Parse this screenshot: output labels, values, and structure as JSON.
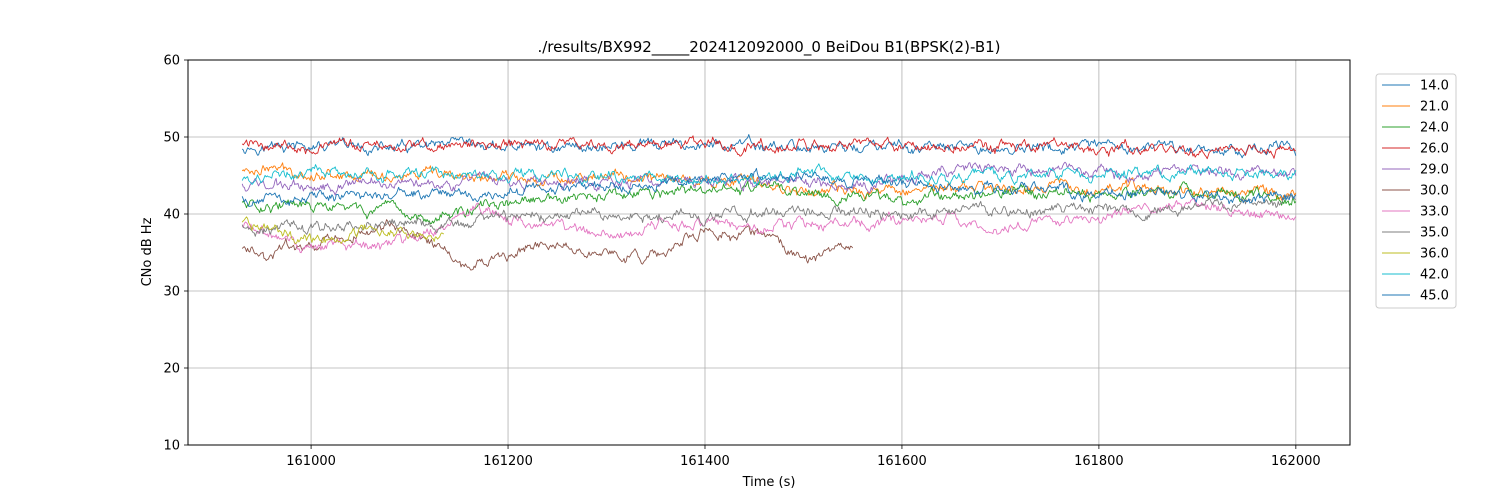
{
  "chart_data": {
    "type": "line",
    "title": "./results/BX992_____202412092000_0 BeiDou B1(BPSK(2)-B1)",
    "xlabel": "Time (s)",
    "ylabel": "CNo dB Hz",
    "xlim": [
      160875,
      162055
    ],
    "ylim": [
      10,
      60
    ],
    "xticks": [
      161000,
      161200,
      161400,
      161600,
      161800,
      162000
    ],
    "yticks": [
      10,
      20,
      30,
      40,
      50,
      60
    ],
    "grid": true,
    "legend_position": "outside-right-top",
    "series": [
      {
        "name": "14.0",
        "color": "#1f77b4",
        "points": [
          [
            160930,
            48.8
          ],
          [
            161000,
            48.6
          ],
          [
            161100,
            48.5
          ],
          [
            161200,
            48.7
          ],
          [
            161300,
            48.8
          ],
          [
            161400,
            48.9
          ],
          [
            161500,
            48.7
          ],
          [
            161600,
            48.6
          ],
          [
            161700,
            48.4
          ],
          [
            161800,
            48.5
          ],
          [
            161900,
            48.5
          ],
          [
            162000,
            48.5
          ]
        ]
      },
      {
        "name": "21.0",
        "color": "#ff7f0e",
        "points": [
          [
            160930,
            45.6
          ],
          [
            160950,
            46.0
          ],
          [
            161000,
            45.3
          ],
          [
            161100,
            44.9
          ],
          [
            161200,
            44.6
          ],
          [
            161300,
            44.9
          ],
          [
            161400,
            44.4
          ],
          [
            161450,
            44.0
          ],
          [
            161500,
            43.2
          ],
          [
            161550,
            42.7
          ],
          [
            161600,
            43.4
          ],
          [
            161700,
            43.3
          ],
          [
            161750,
            43.8
          ],
          [
            161800,
            43.6
          ],
          [
            161900,
            43.0
          ],
          [
            162000,
            42.8
          ]
        ]
      },
      {
        "name": "24.0",
        "color": "#2ca02c",
        "points": [
          [
            160930,
            41.5
          ],
          [
            161000,
            40.8
          ],
          [
            161050,
            40.6
          ],
          [
            161100,
            39.6
          ],
          [
            161150,
            40.2
          ],
          [
            161200,
            41.3
          ],
          [
            161300,
            42.2
          ],
          [
            161400,
            43.0
          ],
          [
            161450,
            43.4
          ],
          [
            161500,
            42.9
          ],
          [
            161550,
            42.2
          ],
          [
            161600,
            41.8
          ],
          [
            161650,
            42.6
          ],
          [
            161700,
            43.1
          ],
          [
            161800,
            42.7
          ],
          [
            161900,
            42.9
          ],
          [
            161950,
            42.4
          ],
          [
            162000,
            42.0
          ]
        ]
      },
      {
        "name": "26.0",
        "color": "#d62728",
        "points": [
          [
            160930,
            49.1
          ],
          [
            161000,
            48.9
          ],
          [
            161100,
            48.8
          ],
          [
            161200,
            49.0
          ],
          [
            161250,
            49.2
          ],
          [
            161300,
            48.8
          ],
          [
            161400,
            49.1
          ],
          [
            161500,
            48.5
          ],
          [
            161600,
            48.9
          ],
          [
            161700,
            48.7
          ],
          [
            161800,
            48.2
          ],
          [
            161900,
            48.3
          ],
          [
            162000,
            48.2
          ]
        ]
      },
      {
        "name": "29.0",
        "color": "#9467bd",
        "points": [
          [
            160930,
            43.9
          ],
          [
            161000,
            43.6
          ],
          [
            161050,
            44.1
          ],
          [
            161100,
            44.4
          ],
          [
            161200,
            44.0
          ],
          [
            161300,
            44.3
          ],
          [
            161400,
            44.2
          ],
          [
            161500,
            44.0
          ],
          [
            161550,
            43.4
          ],
          [
            161600,
            44.8
          ],
          [
            161650,
            45.6
          ],
          [
            161700,
            45.8
          ],
          [
            161800,
            45.4
          ],
          [
            161900,
            45.5
          ],
          [
            162000,
            45.2
          ]
        ]
      },
      {
        "name": "30.0",
        "color": "#8c564b",
        "points": [
          [
            160930,
            35.5
          ],
          [
            160955,
            34.2
          ],
          [
            160980,
            36.0
          ],
          [
            161000,
            35.8
          ],
          [
            161050,
            37.6
          ],
          [
            161080,
            38.1
          ],
          [
            161110,
            37.4
          ],
          [
            161140,
            34.6
          ],
          [
            161160,
            32.4
          ],
          [
            161180,
            33.8
          ],
          [
            161200,
            34.6
          ],
          [
            161230,
            36.2
          ],
          [
            161260,
            35.5
          ],
          [
            161290,
            35.0
          ],
          [
            161320,
            34.2
          ],
          [
            161350,
            34.6
          ],
          [
            161380,
            36.8
          ],
          [
            161400,
            37.8
          ],
          [
            161430,
            37.2
          ],
          [
            161460,
            37.6
          ],
          [
            161480,
            35.4
          ],
          [
            161510,
            34.2
          ],
          [
            161530,
            35.0
          ],
          [
            161550,
            35.6
          ]
        ]
      },
      {
        "name": "33.0",
        "color": "#e377c2",
        "points": [
          [
            160930,
            38.4
          ],
          [
            160980,
            36.2
          ],
          [
            161000,
            36.0
          ],
          [
            161050,
            35.6
          ],
          [
            161100,
            36.4
          ],
          [
            161150,
            39.8
          ],
          [
            161180,
            40.3
          ],
          [
            161220,
            38.8
          ],
          [
            161260,
            37.8
          ],
          [
            161300,
            37.0
          ],
          [
            161330,
            37.6
          ],
          [
            161360,
            38.6
          ],
          [
            161400,
            39.0
          ],
          [
            161450,
            38.0
          ],
          [
            161500,
            38.5
          ],
          [
            161550,
            38.6
          ],
          [
            161600,
            39.2
          ],
          [
            161650,
            39.5
          ],
          [
            161700,
            37.8
          ],
          [
            161750,
            39.0
          ],
          [
            161800,
            40.0
          ],
          [
            161850,
            40.6
          ],
          [
            161900,
            41.4
          ],
          [
            161950,
            40.2
          ],
          [
            162000,
            39.5
          ]
        ]
      },
      {
        "name": "35.0",
        "color": "#7f7f7f",
        "points": [
          [
            160930,
            38.6
          ],
          [
            161000,
            38.4
          ],
          [
            161100,
            38.9
          ],
          [
            161150,
            38.4
          ],
          [
            161200,
            39.6
          ],
          [
            161300,
            40.2
          ],
          [
            161400,
            39.7
          ],
          [
            161500,
            40.4
          ],
          [
            161600,
            40.0
          ],
          [
            161700,
            40.5
          ],
          [
            161800,
            40.6
          ],
          [
            161850,
            39.8
          ],
          [
            161900,
            41.0
          ],
          [
            162000,
            41.6
          ]
        ]
      },
      {
        "name": "36.0",
        "color": "#bcbd22",
        "points": [
          [
            160930,
            38.9
          ],
          [
            160960,
            37.8
          ],
          [
            160990,
            36.6
          ],
          [
            161020,
            36.8
          ],
          [
            161050,
            37.6
          ],
          [
            161080,
            38.4
          ],
          [
            161110,
            37.0
          ],
          [
            161135,
            37.6
          ]
        ]
      },
      {
        "name": "42.0",
        "color": "#17becf",
        "points": [
          [
            160930,
            44.3
          ],
          [
            161000,
            45.2
          ],
          [
            161100,
            45.0
          ],
          [
            161200,
            45.3
          ],
          [
            161300,
            44.7
          ],
          [
            161400,
            44.3
          ],
          [
            161500,
            44.9
          ],
          [
            161600,
            44.8
          ],
          [
            161700,
            44.8
          ],
          [
            161800,
            45.1
          ],
          [
            161900,
            45.1
          ],
          [
            162000,
            45.0
          ]
        ]
      },
      {
        "name": "45.0",
        "color": "#1f77b4",
        "points": [
          [
            160930,
            41.9
          ],
          [
            161000,
            42.2
          ],
          [
            161100,
            42.6
          ],
          [
            161200,
            43.0
          ],
          [
            161300,
            43.4
          ],
          [
            161400,
            44.2
          ],
          [
            161500,
            44.9
          ],
          [
            161600,
            44.2
          ],
          [
            161700,
            43.2
          ],
          [
            161800,
            42.8
          ],
          [
            161900,
            42.2
          ],
          [
            162000,
            42.0
          ]
        ]
      }
    ]
  }
}
